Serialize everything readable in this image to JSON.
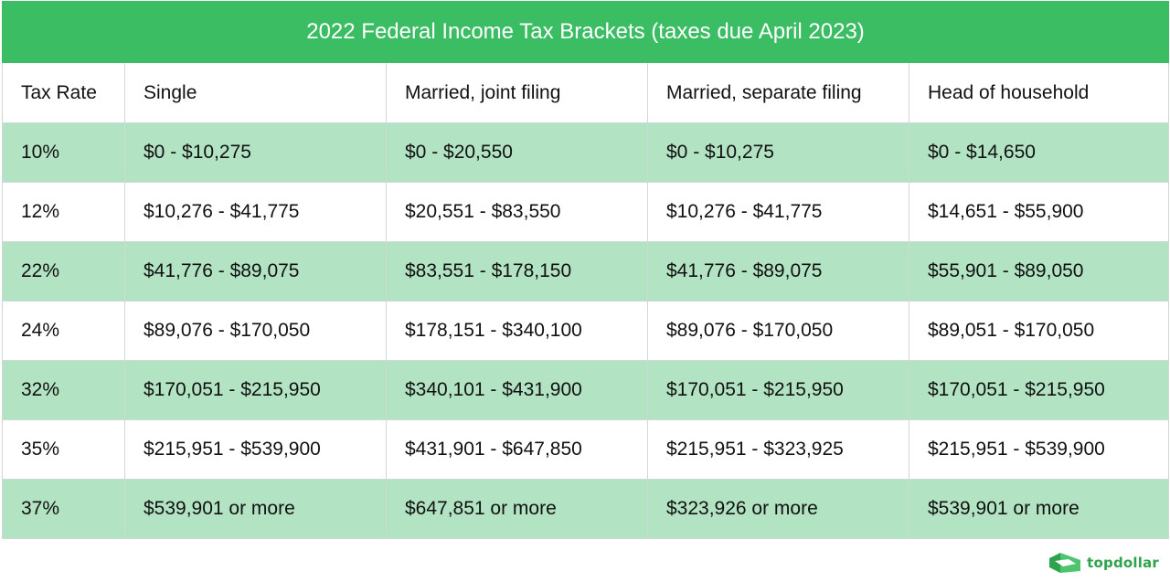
{
  "title": "2022 Federal Income Tax Brackets (taxes due April 2023)",
  "columns": [
    "Tax Rate",
    "Single",
    "Married, joint filing",
    "Married, separate filing",
    "Head of household"
  ],
  "rows": [
    [
      "10%",
      "$0 - $10,275",
      "$0 - $20,550",
      "$0 - $10,275",
      "$0 - $14,650"
    ],
    [
      "12%",
      "$10,276 - $41,775",
      "$20,551 - $83,550",
      "$10,276 - $41,775",
      "$14,651 - $55,900"
    ],
    [
      "22%",
      "$41,776 - $89,075",
      "$83,551 - $178,150",
      "$41,776 - $89,075",
      "$55,901 - $89,050"
    ],
    [
      "24%",
      "$89,076 - $170,050",
      "$178,151 - $340,100",
      "$89,076 - $170,050",
      "$89,051 - $170,050"
    ],
    [
      "32%",
      "$170,051 - $215,950",
      "$340,101 - $431,900",
      "$170,051 - $215,950",
      "$170,051 - $215,950"
    ],
    [
      "35%",
      "$215,951 - $539,900",
      "$431,901 - $647,850",
      "$215,951 - $323,925",
      "$215,951 - $539,900"
    ],
    [
      "37%",
      "$539,901 or more",
      "$647,851 or more",
      "$323,926 or more",
      "$539,901 or more"
    ]
  ],
  "logo": {
    "text": "topdollar",
    "icon": "topdollar-logo-icon"
  },
  "colors": {
    "header_bg": "#3bbd63",
    "shaded_row": "#b2e3c3",
    "logo": "#2ea24c"
  }
}
